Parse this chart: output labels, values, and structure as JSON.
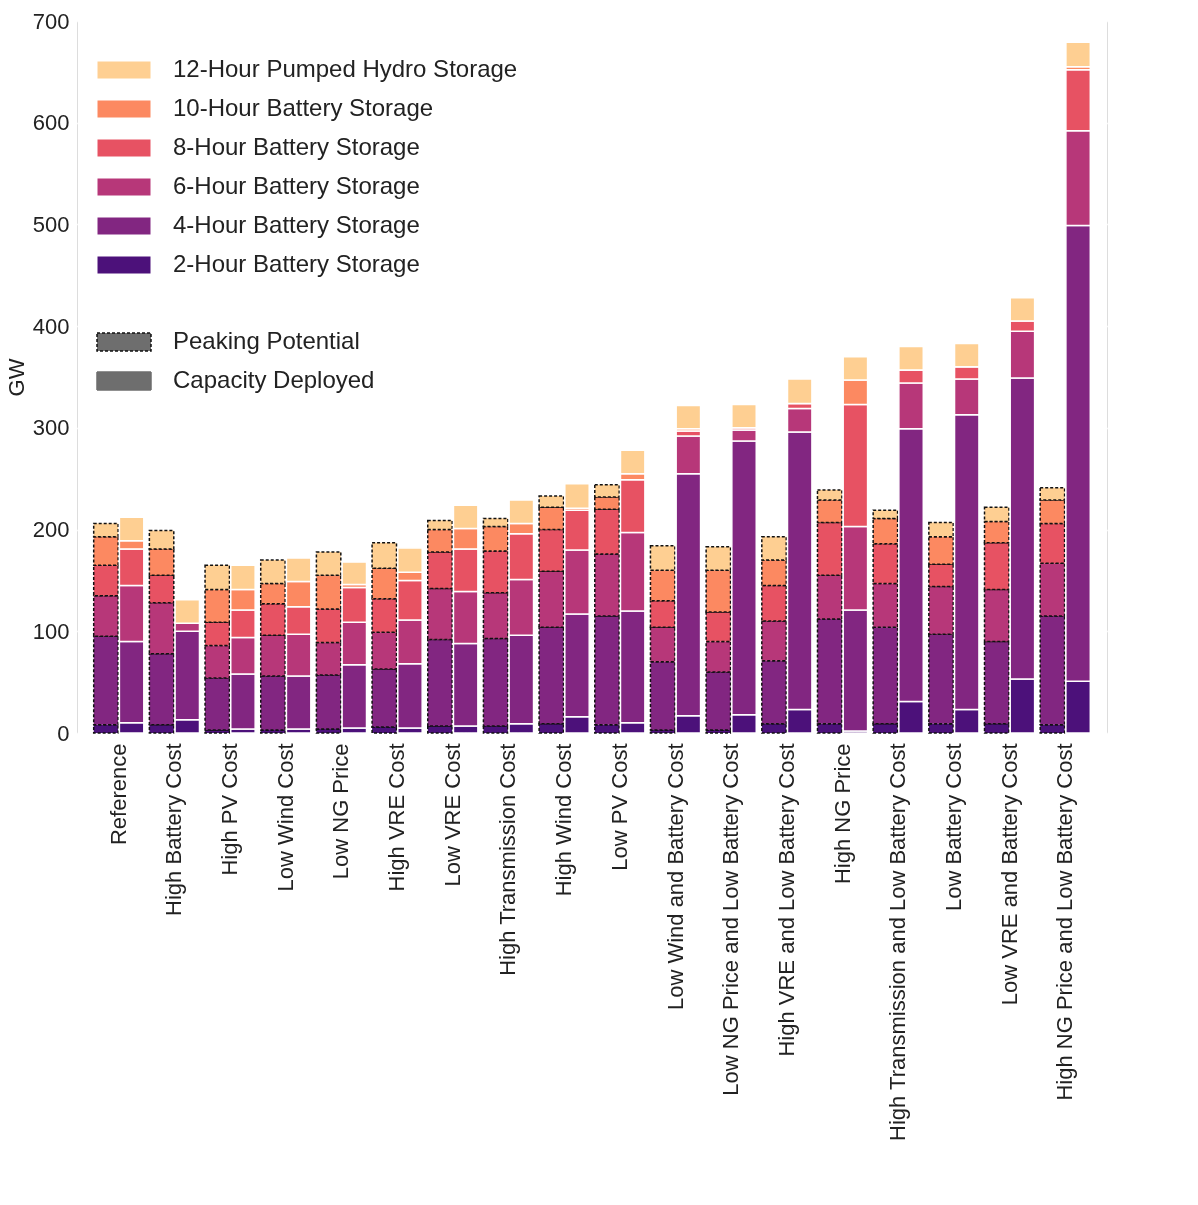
{
  "chart_data": [
    {
      "type": "bar",
      "stacked": true,
      "ylabel": "GW",
      "ylim": [
        0,
        700
      ],
      "yticks": [
        0,
        100,
        200,
        300,
        400,
        500,
        600,
        700
      ],
      "grid": true,
      "legend": "top left",
      "legend_title": "Peaking Potential",
      "categories": [
        "Reference",
        "High Battery Cost",
        "High PV Cost",
        "Low Wind Cost",
        "Low NG Price",
        "High VRE Cost",
        "Low VRE Cost",
        "High Transmission Cost",
        "High Wind Cost",
        "Low PV Cost",
        "Low Wind and Battery Cost",
        "Low NG Price and Low Battery Cost",
        "High VRE and Low Battery Cost",
        "High NG Price",
        "High Transmission and Low Battery Cost",
        "Low Battery Cost",
        "Low VRE and Battery Cost",
        "High NG Price and Low Battery Cost"
      ],
      "series": [
        {
          "name": "2-Hour Battery Storage",
          "color": "#4c117a",
          "values": [
            8,
            8,
            3,
            3,
            4,
            6,
            7,
            7,
            9,
            8,
            3,
            3,
            9,
            9,
            9,
            9,
            9,
            8
          ]
        },
        {
          "name": "4-Hour Battery Storage",
          "color": "#822681",
          "values": [
            87,
            70,
            51,
            53,
            53,
            57,
            85,
            86,
            95,
            107,
            67,
            57,
            62,
            103,
            95,
            88,
            81,
            107
          ]
        },
        {
          "name": "6-Hour Battery Storage",
          "color": "#b73779",
          "values": [
            40,
            50,
            32,
            40,
            32,
            36,
            50,
            45,
            55,
            61,
            34,
            30,
            39,
            43,
            43,
            47,
            51,
            52
          ]
        },
        {
          "name": "8-Hour Battery Storage",
          "color": "#e75263",
          "values": [
            30,
            27,
            23,
            31,
            33,
            33,
            36,
            41,
            41,
            44,
            26,
            29,
            35,
            52,
            39,
            22,
            46,
            39
          ]
        },
        {
          "name": "10-Hour Battery Storage",
          "color": "#fc8961",
          "values": [
            28,
            26,
            32,
            20,
            33,
            30,
            22,
            24,
            22,
            12,
            30,
            41,
            25,
            22,
            25,
            27,
            21,
            23
          ]
        },
        {
          "name": "12-Hour Pumped Hydro Storage",
          "color": "#fecf92",
          "values": [
            13,
            18,
            24,
            23,
            23,
            25,
            9,
            8,
            11,
            12,
            24,
            23,
            23,
            10,
            8,
            14,
            14,
            12
          ]
        }
      ]
    },
    {
      "type": "bar",
      "stacked": true,
      "ylim": [
        0,
        700
      ],
      "yticks": [
        0,
        100,
        200,
        300,
        400,
        500,
        600,
        700
      ],
      "tick_labels": false,
      "grid": true,
      "legend": "top left",
      "legend_title": "Capacity Deployed",
      "categories": [
        "Reference",
        "High Battery Cost",
        "High PV Cost",
        "Low Wind Cost",
        "Low NG Price",
        "High VRE Cost",
        "Low VRE Cost",
        "High Transmission Cost",
        "High Wind Cost",
        "Low PV Cost",
        "Low Wind and Battery Cost",
        "Low NG Price and Low Battery Cost",
        "High VRE and Low Battery Cost",
        "High NG Price",
        "High Transmission and Low Battery Cost",
        "Low Battery Cost",
        "Low VRE and Battery Cost",
        "High NG Price and Low Battery Cost"
      ],
      "series": [
        {
          "color": "#4c117a",
          "values": [
            10,
            13,
            4,
            4,
            5,
            5,
            7,
            9,
            16,
            10,
            17,
            18,
            23,
            2,
            31,
            23,
            53,
            51
          ]
        },
        {
          "color": "#822681",
          "values": [
            80,
            87,
            54,
            52,
            62,
            63,
            81,
            87,
            101,
            110,
            238,
            269,
            273,
            119,
            268,
            290,
            296,
            448
          ]
        },
        {
          "color": "#b73779",
          "values": [
            55,
            8,
            36,
            41,
            42,
            43,
            51,
            55,
            63,
            77,
            37,
            11,
            23,
            82,
            45,
            35,
            46,
            93
          ]
        },
        {
          "color": "#e75263",
          "values": [
            36,
            0,
            27,
            27,
            34,
            39,
            42,
            45,
            39,
            52,
            5,
            2,
            5,
            120,
            13,
            12,
            10,
            60
          ]
        },
        {
          "color": "#fc8961",
          "values": [
            8,
            0,
            20,
            25,
            3,
            8,
            20,
            10,
            2,
            6,
            2,
            0,
            0,
            24,
            0,
            0,
            null,
            3
          ]
        },
        {
          "color": "#fecf92",
          "values": [
            23,
            23,
            24,
            23,
            22,
            24,
            23,
            23,
            24,
            23,
            23,
            23,
            24,
            23,
            23,
            23,
            23,
            24
          ]
        }
      ]
    }
  ]
}
